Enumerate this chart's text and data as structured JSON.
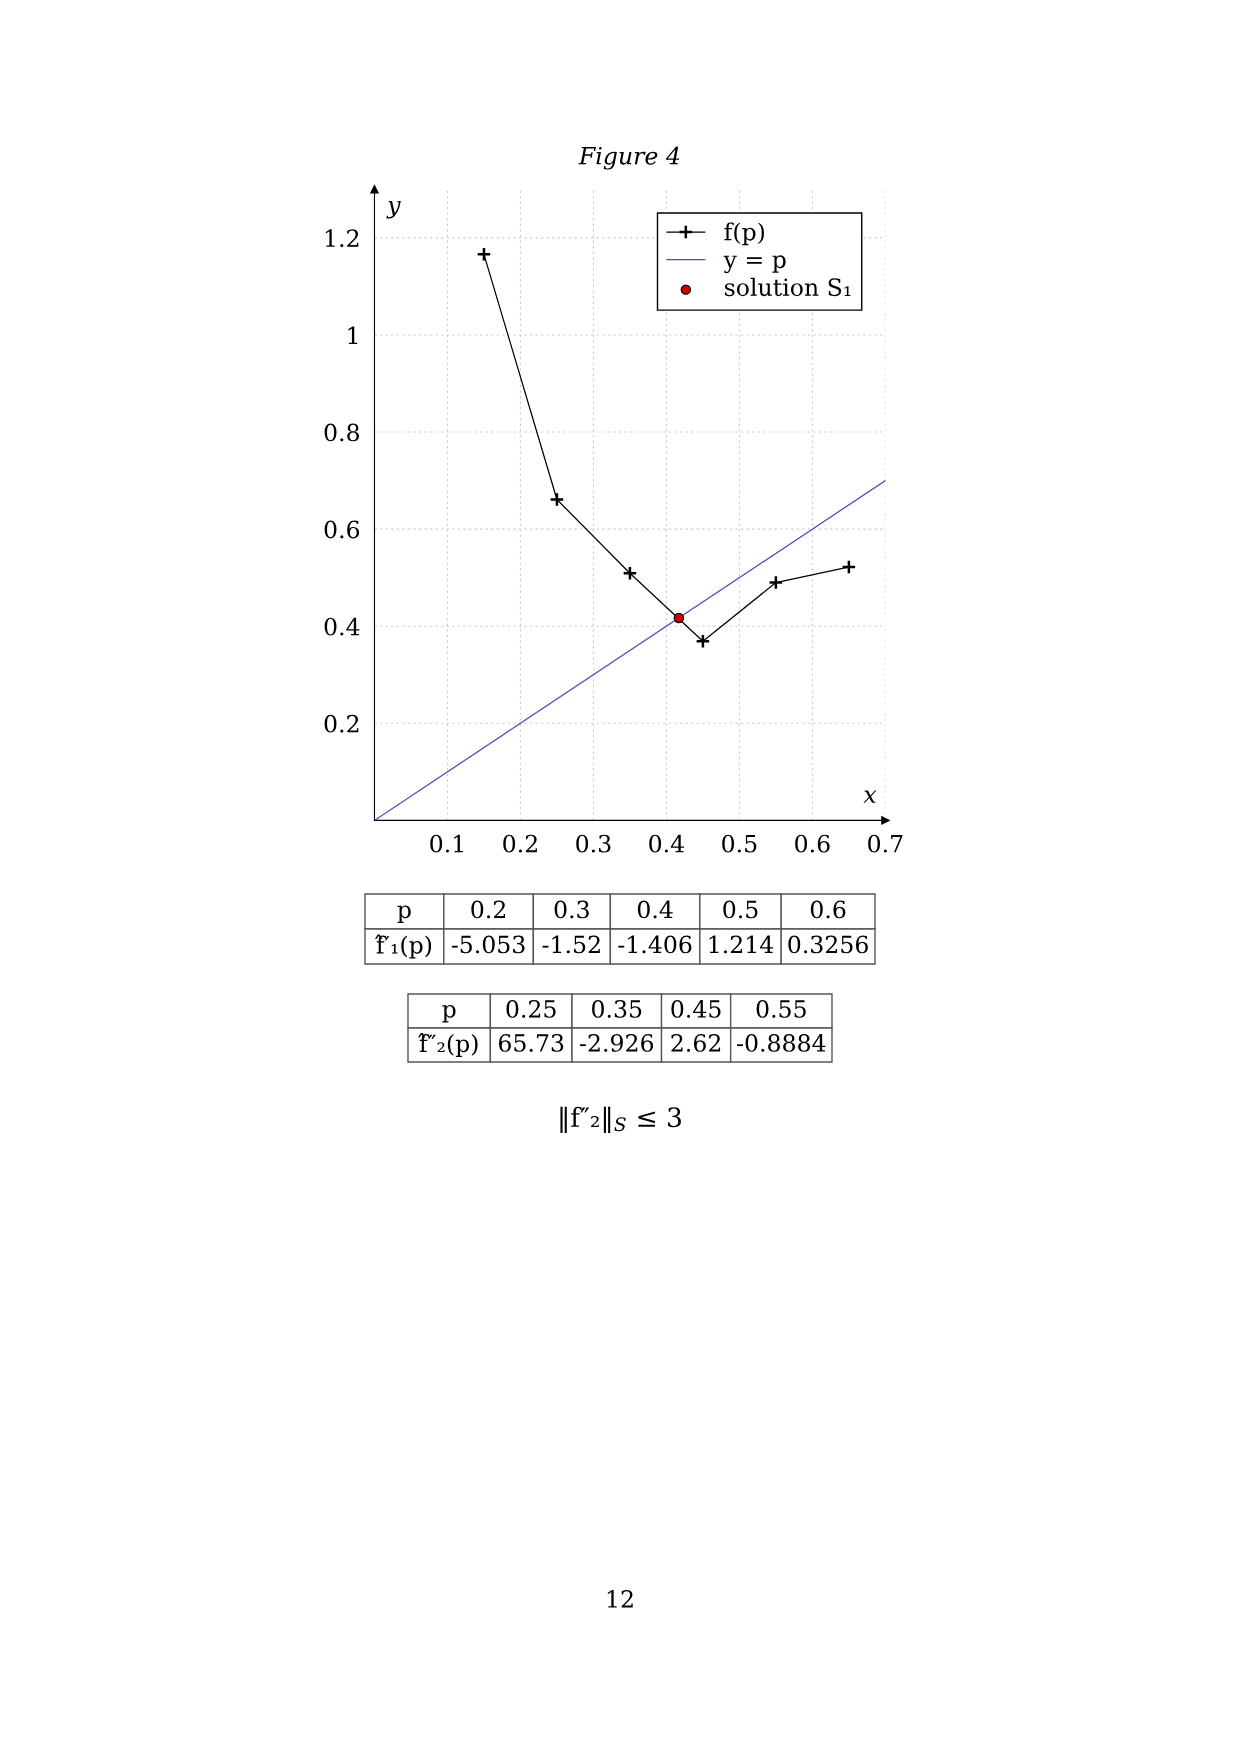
{
  "chart_data": {
    "type": "line",
    "title": "Figure 4",
    "xlabel": "x",
    "ylabel": "y",
    "xlim": [
      0,
      0.7
    ],
    "ylim": [
      0,
      1.3
    ],
    "xticks": [
      0.1,
      0.2,
      0.3,
      0.4,
      0.5,
      0.6,
      0.7
    ],
    "yticks": [
      0.2,
      0.4,
      0.6,
      0.8,
      1,
      1.2
    ],
    "grid": true,
    "legend": "top right",
    "series": [
      {
        "name": "f(p)",
        "color": "#000000",
        "marker": "cross",
        "x": [
          0.15,
          0.25,
          0.35,
          0.45,
          0.55,
          0.65
        ],
        "values": [
          1.166,
          0.661,
          0.509,
          0.369,
          0.49,
          0.522
        ]
      },
      {
        "name": "y = p",
        "color": "#4c4cb8",
        "marker": "none",
        "x": [
          0,
          0.7
        ],
        "values": [
          0,
          0.7
        ]
      },
      {
        "name": "solution S₁",
        "type": "scatter",
        "color": "#cc0000",
        "marker": "circle",
        "x": [
          0.417
        ],
        "values": [
          0.417
        ]
      }
    ],
    "annotations": [
      "p",
      "0.2",
      "0.3",
      "0.4",
      "0.5",
      "0.6",
      "f̂′₁(p)",
      "-5.053",
      "-1.52",
      "-1.406",
      "1.214",
      "0.3256",
      "p",
      "0.25",
      "0.35",
      "0.45",
      "0.55",
      "f̂″₂(p)",
      "65.73",
      "-2.926",
      "2.62",
      "-0.8884",
      "‖f″₂‖$_{S}$ ≤ 3",
      "12"
    ]
  }
}
